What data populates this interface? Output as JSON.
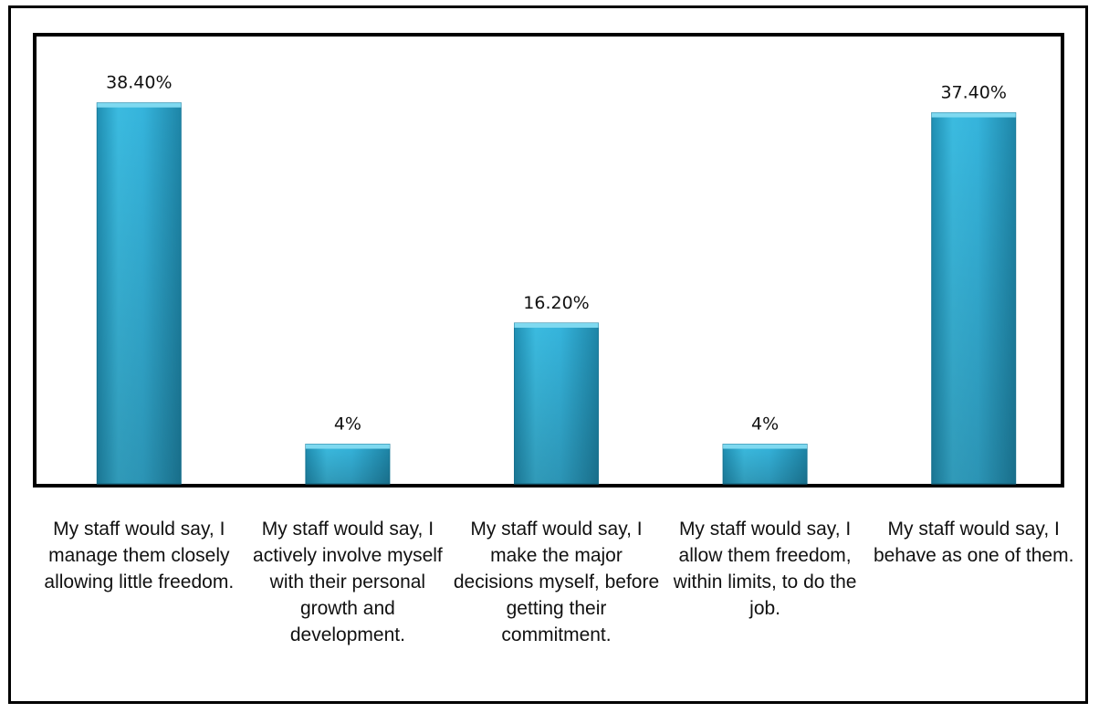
{
  "chart_data": {
    "type": "bar",
    "categories": [
      "My staff would say, I manage them closely allowing little freedom.",
      "My staff would say, I actively involve myself with their personal growth and development.",
      "My staff would say, I make the major decisions myself, before getting their commitment.",
      "My staff would say, I allow them freedom, within limits, to do the job.",
      "My staff would say, I behave as one of them."
    ],
    "values": [
      38.4,
      4,
      16.2,
      4,
      37.4
    ],
    "data_labels": [
      "38.40%",
      "4%",
      "16.20%",
      "4%",
      "37.40%"
    ],
    "title": "",
    "xlabel": "",
    "ylabel": "",
    "ylim": [
      0,
      42
    ],
    "grid": false,
    "legend": "none",
    "bar_color": "#2aa9cf"
  }
}
